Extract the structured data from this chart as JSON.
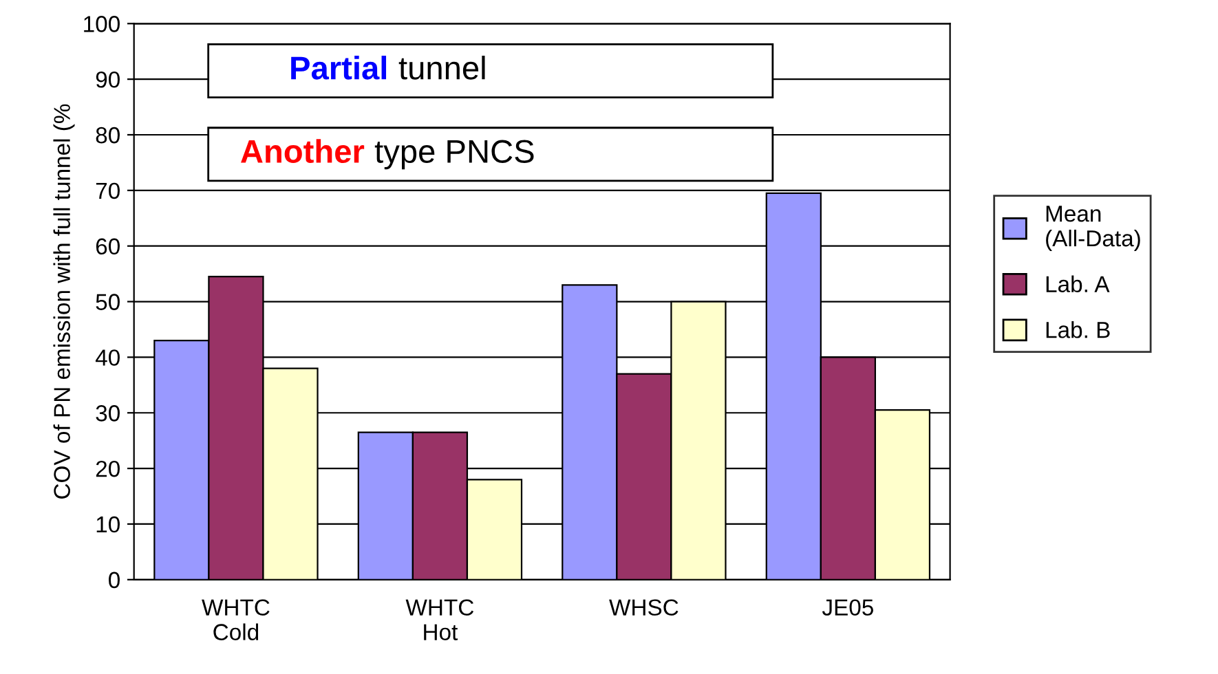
{
  "chart_data": {
    "type": "bar",
    "ylabel": "COV of PN emission with full tunnel (%",
    "categories": [
      "WHTC\nCold",
      "WHTC\nHot",
      "WHSC",
      "JE05"
    ],
    "series": [
      {
        "name": "Mean\n(All-Data)",
        "color": "#9999ff",
        "values": [
          43,
          26.5,
          53,
          69.5
        ]
      },
      {
        "name": "Lab. A",
        "color": "#993366",
        "values": [
          54.5,
          26.5,
          37,
          40
        ]
      },
      {
        "name": "Lab. B",
        "color": "#ffffcc",
        "values": [
          38,
          18,
          50,
          30.5
        ]
      }
    ],
    "annotations": [
      "Partial tunnel",
      "Another type PNCS"
    ],
    "ylim": [
      0,
      100
    ],
    "yticks": [
      0,
      10,
      20,
      30,
      40,
      50,
      60,
      70,
      80,
      90,
      100
    ],
    "grid": "y",
    "legend": "right"
  }
}
